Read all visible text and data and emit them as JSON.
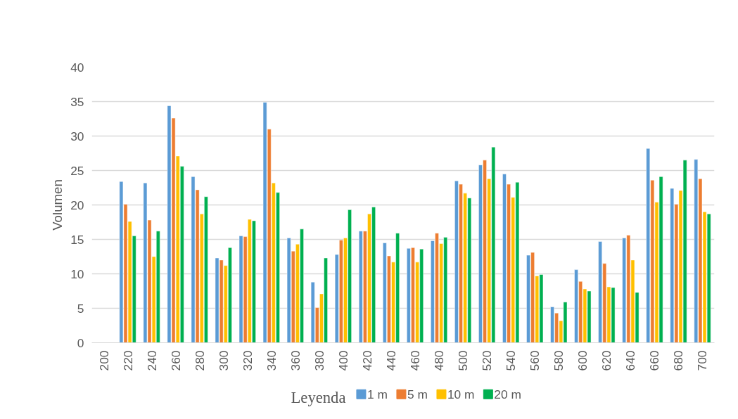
{
  "chart_data": {
    "type": "bar",
    "ylabel": "Volumen",
    "legend_title": "Leyenda",
    "categories": [
      "200",
      "220",
      "240",
      "260",
      "280",
      "300",
      "320",
      "340",
      "360",
      "380",
      "400",
      "420",
      "440",
      "460",
      "480",
      "500",
      "520",
      "540",
      "560",
      "580",
      "600",
      "620",
      "640",
      "660",
      "680",
      "700"
    ],
    "series": [
      {
        "name": "1 m",
        "color": "#5b9bd5",
        "values": [
          null,
          23.4,
          23.2,
          34.4,
          24.1,
          12.3,
          15.5,
          34.9,
          15.2,
          8.8,
          12.8,
          16.2,
          14.5,
          13.7,
          14.8,
          23.5,
          25.8,
          24.5,
          12.7,
          5.2,
          10.6,
          14.7,
          15.2,
          28.2,
          22.4,
          26.6
        ]
      },
      {
        "name": "5 m",
        "color": "#ed7d31",
        "values": [
          null,
          20.1,
          17.8,
          32.6,
          22.2,
          12.0,
          15.4,
          31.0,
          13.3,
          5.1,
          14.9,
          16.2,
          12.6,
          13.8,
          15.9,
          23.0,
          26.5,
          23.0,
          13.1,
          4.3,
          8.9,
          11.5,
          15.6,
          23.6,
          20.1,
          23.8
        ]
      },
      {
        "name": "10 m",
        "color": "#ffc000",
        "values": [
          null,
          17.6,
          12.5,
          27.1,
          18.7,
          11.2,
          17.9,
          23.2,
          14.3,
          7.1,
          15.2,
          18.7,
          11.7,
          11.7,
          14.4,
          21.7,
          23.8,
          21.1,
          9.7,
          3.2,
          7.8,
          8.1,
          12.0,
          20.4,
          22.1,
          19.0
        ]
      },
      {
        "name": "20 m",
        "color": "#00b050",
        "values": [
          null,
          15.5,
          16.2,
          25.6,
          21.2,
          13.8,
          17.7,
          21.8,
          16.5,
          12.3,
          19.3,
          19.7,
          15.9,
          13.6,
          15.3,
          21.0,
          28.4,
          23.3,
          9.9,
          5.9,
          7.5,
          8.0,
          7.3,
          24.1,
          26.5,
          18.7
        ]
      }
    ],
    "ylim": [
      0,
      40
    ],
    "yticks": [
      0,
      5,
      10,
      15,
      20,
      25,
      30,
      35,
      40
    ],
    "grid": "y",
    "legend": "bottom"
  }
}
